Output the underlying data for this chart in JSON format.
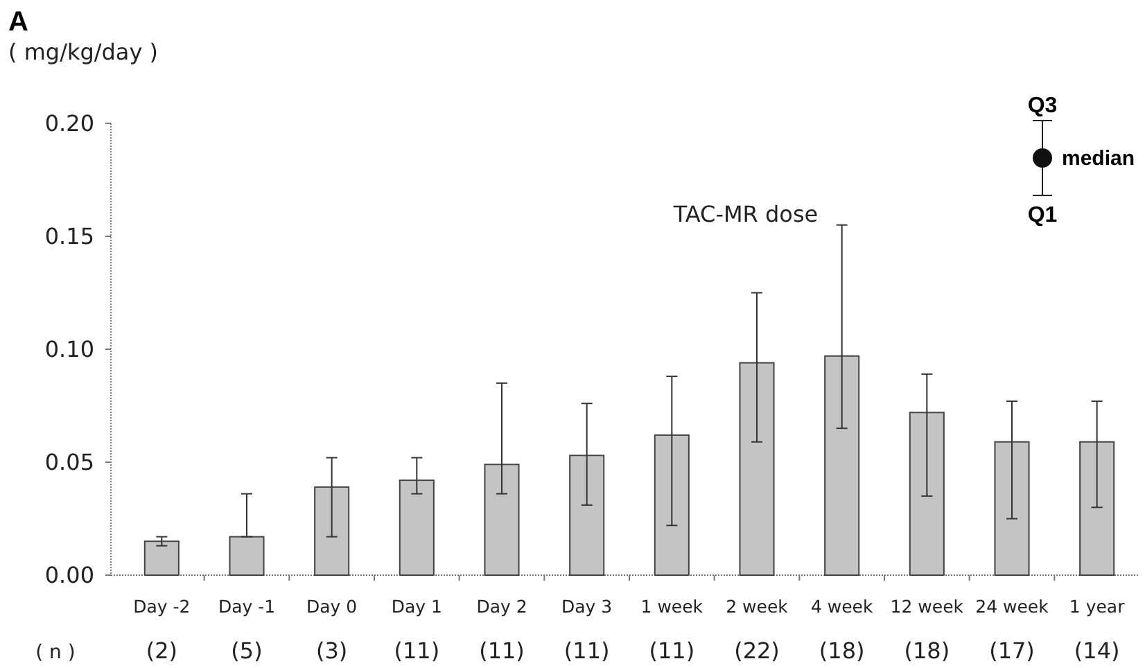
{
  "chart_data": {
    "type": "bar",
    "title": "A",
    "subtitle": "TAC-MR dose",
    "ylabel": "( mg/kg/day )",
    "categories": [
      "Day -2",
      "Day -1",
      "Day 0",
      "Day 1",
      "Day 2",
      "Day 3",
      "1 week",
      "2 week",
      "4 week",
      "12 week",
      "24 week",
      "1 year"
    ],
    "values": [
      0.015,
      0.017,
      0.039,
      0.042,
      0.049,
      0.053,
      0.062,
      0.094,
      0.097,
      0.072,
      0.059,
      0.059
    ],
    "errors": [
      [
        0.013,
        0.017
      ],
      [
        0.017,
        0.036
      ],
      [
        0.017,
        0.052
      ],
      [
        0.036,
        0.052
      ],
      [
        0.036,
        0.085
      ],
      [
        0.031,
        0.076
      ],
      [
        0.022,
        0.088
      ],
      [
        0.059,
        0.125
      ],
      [
        0.065,
        0.155
      ],
      [
        0.035,
        0.089
      ],
      [
        0.025,
        0.077
      ],
      [
        0.03,
        0.077
      ]
    ],
    "color": "#c4c4c4",
    "ylim": [
      0,
      0.2
    ],
    "yticks": [
      {
        "value": 0,
        "label": "0.00"
      },
      {
        "value": 0.05,
        "label": "0.05"
      },
      {
        "value": 0.1,
        "label": "0.10"
      },
      {
        "value": 0.15,
        "label": "0.15"
      },
      {
        "value": 0.2,
        "label": "0.20"
      }
    ],
    "annotations": [
      "Q3",
      "median",
      "Q1",
      "( n )",
      "(2)",
      "(5)",
      "(3)",
      "(11)",
      "(11)",
      "(11)",
      "(11)",
      "(22)",
      "(18)",
      "(18)",
      "(17)",
      "(14)"
    ]
  }
}
